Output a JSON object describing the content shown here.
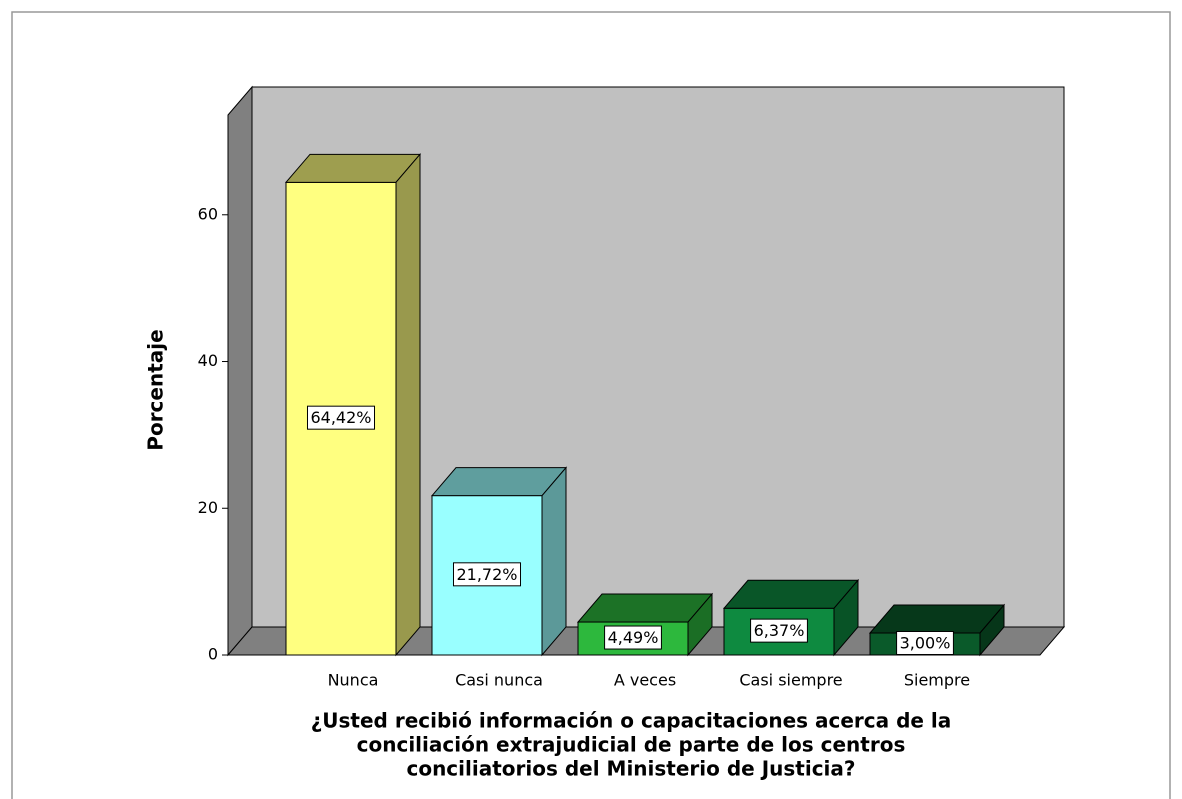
{
  "chart_data": {
    "type": "bar3d",
    "x_label": [
      "¿Usted recibió información o capacitaciones acerca de la",
      "conciliación extrajudicial de parte de los centros",
      "conciliatorios del Ministerio de Justicia?"
    ],
    "y_label": "Porcentaje",
    "categories": [
      "Nunca",
      "Casi nunca",
      "A veces",
      "Casi siempre",
      "Siempre"
    ],
    "values": [
      64.42,
      21.72,
      4.49,
      6.37,
      3.0
    ],
    "value_labels": [
      "64,42%",
      "21,72%",
      "4,49%",
      "6,37%",
      "3,00%"
    ],
    "colors": [
      "#ffff80",
      "#99ffff",
      "#2db83d",
      "#0e8a40",
      "#0a5a2a"
    ],
    "ylim": [
      0,
      73.6
    ],
    "yticks": [
      0,
      20,
      40,
      60
    ]
  }
}
